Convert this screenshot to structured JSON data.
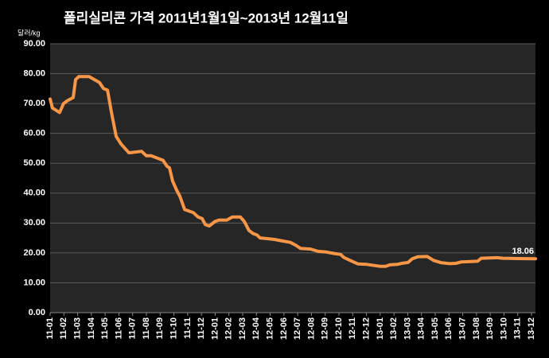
{
  "chart_data": {
    "type": "line",
    "title": "폴리실리콘 가격    2011년1월1일~2013년 12월11일",
    "y_axis_label": "달러/kg",
    "categories": [
      "11-01",
      "11-02",
      "11-03",
      "11-04",
      "11-05",
      "11-06",
      "11-07",
      "11-08",
      "11-09",
      "11-10",
      "11-11",
      "11-12",
      "12-01",
      "12-02",
      "12-03",
      "12-04",
      "12-05",
      "12-06",
      "12-07",
      "12-08",
      "12-09",
      "12-10",
      "12-11",
      "12-12",
      "13-01",
      "13-02",
      "13-03",
      "13-04",
      "13-05",
      "13-06",
      "13-07",
      "13-08",
      "13-09",
      "13-10",
      "13-11",
      "13-12"
    ],
    "x": [
      0,
      0.17,
      0.69,
      0.98,
      1.27,
      1.68,
      1.85,
      2.08,
      2.83,
      3.59,
      3.88,
      4.17,
      4.46,
      4.8,
      5.15,
      5.73,
      6.65,
      7.0,
      7.35,
      7.64,
      8.21,
      8.5,
      8.68,
      8.91,
      9.2,
      9.43,
      9.78,
      10.41,
      10.76,
      11.05,
      11.28,
      11.57,
      11.98,
      12.27,
      12.85,
      13.25,
      13.83,
      14.12,
      14.46,
      14.75,
      15.04,
      15.27,
      15.74,
      16.31,
      16.89,
      17.47,
      17.88,
      18.22,
      18.92,
      19.5,
      20.07,
      20.65,
      21.12,
      21.35,
      21.81,
      22.39,
      22.97,
      23.55,
      24.01,
      24.41,
      24.7,
      25.28,
      25.57,
      26.03,
      26.32,
      26.73,
      27.42,
      27.88,
      28.46,
      29.04,
      29.5,
      29.91,
      31.07,
      31.35,
      32.51,
      32.92,
      33.96,
      35.29
    ],
    "series": [
      {
        "name": "폴리실리콘 가격",
        "color": "#f79646",
        "values": [
          71.5,
          68.5,
          67,
          70,
          71,
          72,
          78,
          79,
          79,
          77,
          75,
          74.5,
          67,
          59,
          56.5,
          53.5,
          54,
          52.5,
          52.5,
          52,
          51,
          49,
          48.5,
          44,
          41,
          39,
          34.5,
          33.5,
          32,
          31.5,
          29.5,
          29,
          30.5,
          31,
          31,
          32,
          32,
          30.5,
          27.5,
          26.5,
          26,
          25,
          24.8,
          24.5,
          24,
          23.5,
          22.5,
          21.5,
          21.3,
          20.5,
          20.3,
          19.8,
          19.5,
          18.5,
          17.5,
          16.3,
          16.2,
          15.8,
          15.5,
          15.5,
          16,
          16.2,
          16.5,
          16.8,
          18,
          18.7,
          18.8,
          17.5,
          16.7,
          16.4,
          16.5,
          17,
          17.2,
          18.2,
          18.4,
          18.2,
          18.1,
          18.06
        ]
      }
    ],
    "xlim": [
      0,
      35.29
    ],
    "ylim": [
      0,
      90
    ],
    "yticks": [
      {
        "value": 0,
        "label": "0.00"
      },
      {
        "value": 10,
        "label": "10.00"
      },
      {
        "value": 20,
        "label": "20.00"
      },
      {
        "value": 30,
        "label": "30.00"
      },
      {
        "value": 40,
        "label": "40.00"
      },
      {
        "value": 50,
        "label": "50.00"
      },
      {
        "value": 60,
        "label": "60.00"
      },
      {
        "value": 70,
        "label": "70.00"
      },
      {
        "value": 80,
        "label": "80.00"
      },
      {
        "value": 90,
        "label": "90.00"
      }
    ],
    "grid": true
  }
}
